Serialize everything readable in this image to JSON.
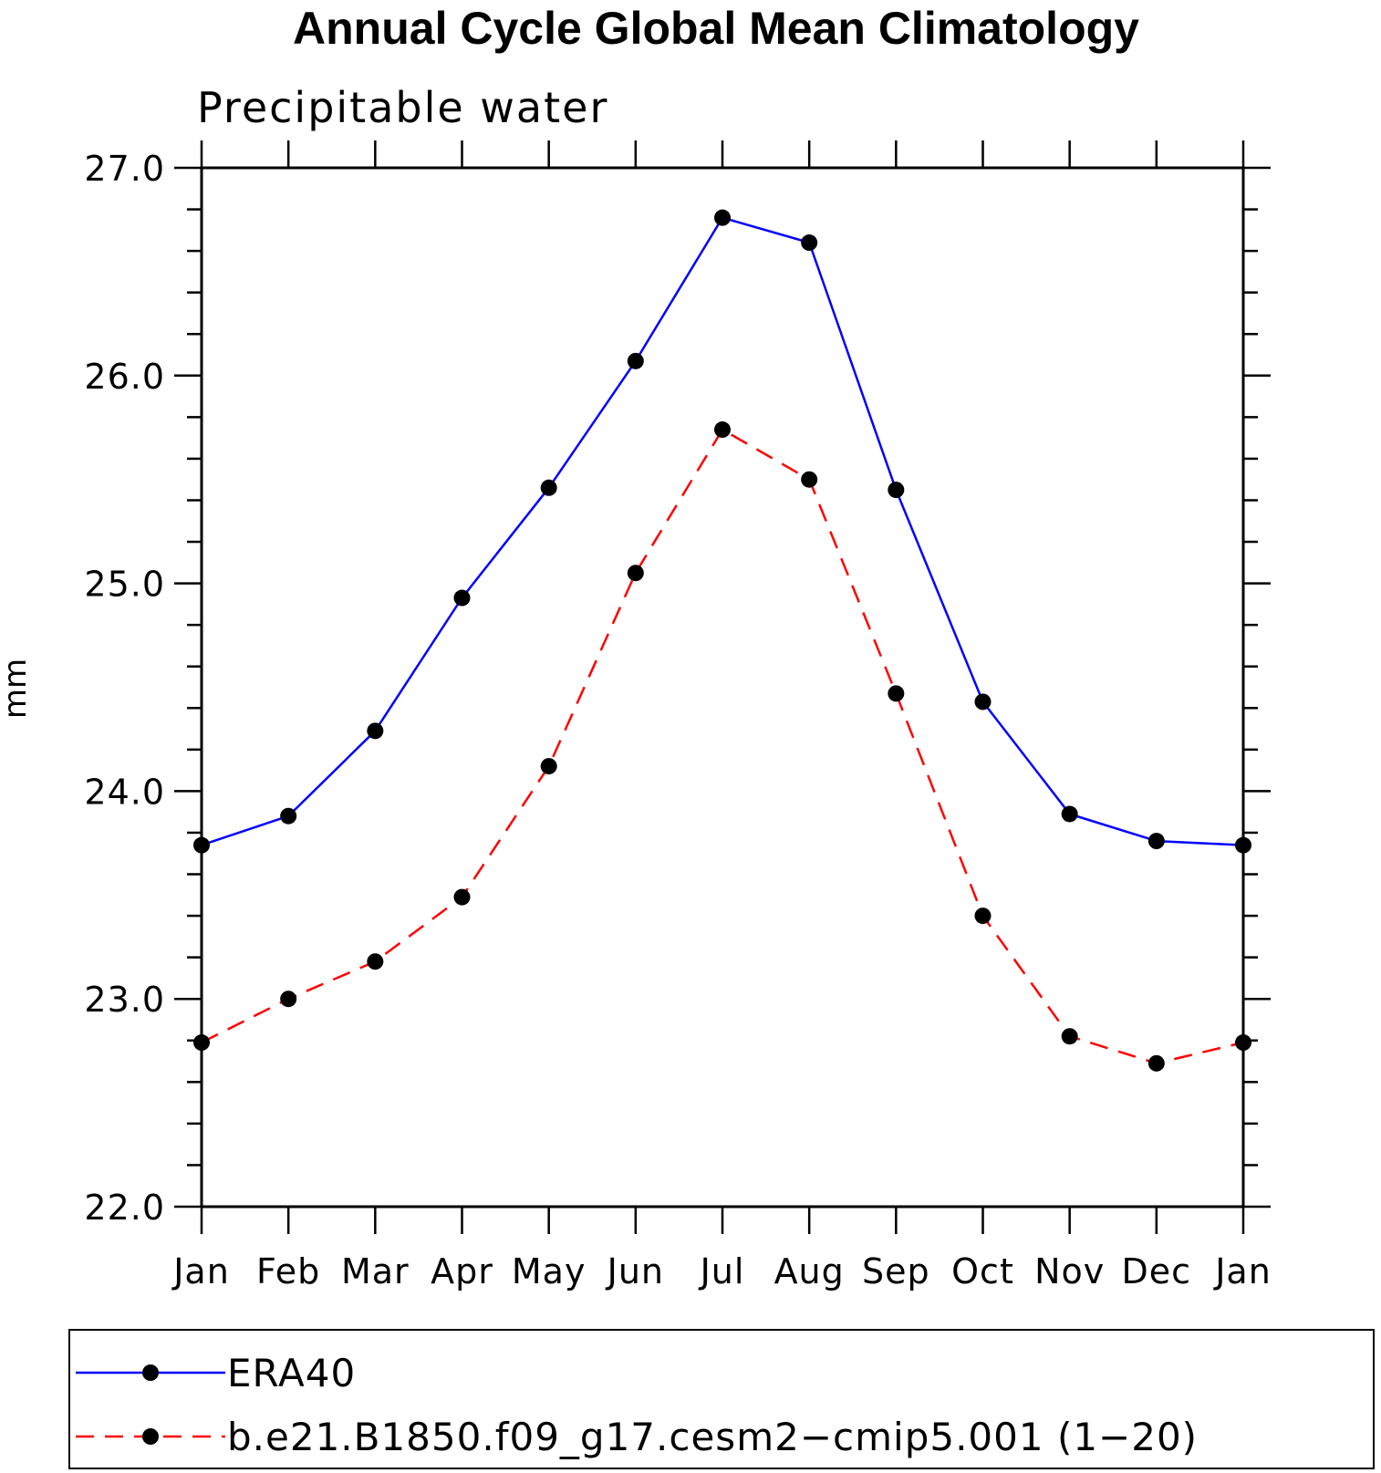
{
  "chart_data": {
    "type": "line",
    "title": "Annual Cycle Global Mean Climatology",
    "subtitle": "Precipitable water",
    "ylabel": "mm",
    "xlabel": "",
    "categories": [
      "Jan",
      "Feb",
      "Mar",
      "Apr",
      "May",
      "Jun",
      "Jul",
      "Aug",
      "Sep",
      "Oct",
      "Nov",
      "Dec",
      "Jan"
    ],
    "ylim": [
      22.0,
      27.0
    ],
    "yticks": [
      "22.0",
      "23.0",
      "24.0",
      "25.0",
      "26.0",
      "27.0"
    ],
    "grid": false,
    "legend_position": "bottom",
    "series": [
      {
        "name": "ERA40",
        "color": "#0000ff",
        "style": "solid",
        "marker": "filled-circle",
        "values": [
          23.74,
          23.88,
          24.29,
          24.93,
          25.46,
          26.07,
          26.76,
          26.64,
          25.45,
          24.43,
          23.89,
          23.76,
          23.74
        ]
      },
      {
        "name": "b.e21.B1850.f09_g17.cesm2−cmip5.001 (1−20)",
        "color": "#ff0000",
        "style": "dashed",
        "marker": "filled-circle",
        "values": [
          22.79,
          23.0,
          23.18,
          23.49,
          24.12,
          25.05,
          25.74,
          25.5,
          24.47,
          23.4,
          22.82,
          22.69,
          22.79
        ]
      }
    ]
  }
}
